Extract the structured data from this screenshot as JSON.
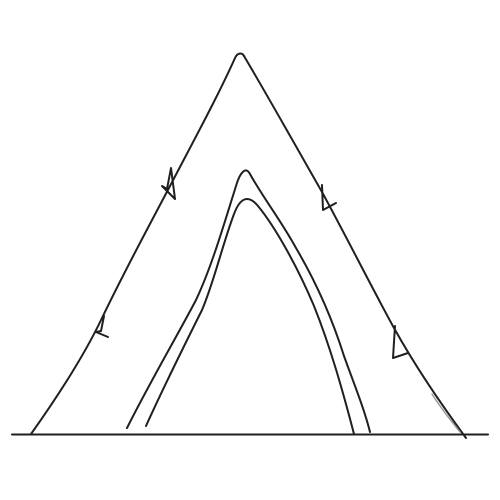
{
  "drawing": {
    "stroke_color": "#1f1f1f",
    "light_stroke_color": "#9a9a9a",
    "background": "#ffffff"
  }
}
